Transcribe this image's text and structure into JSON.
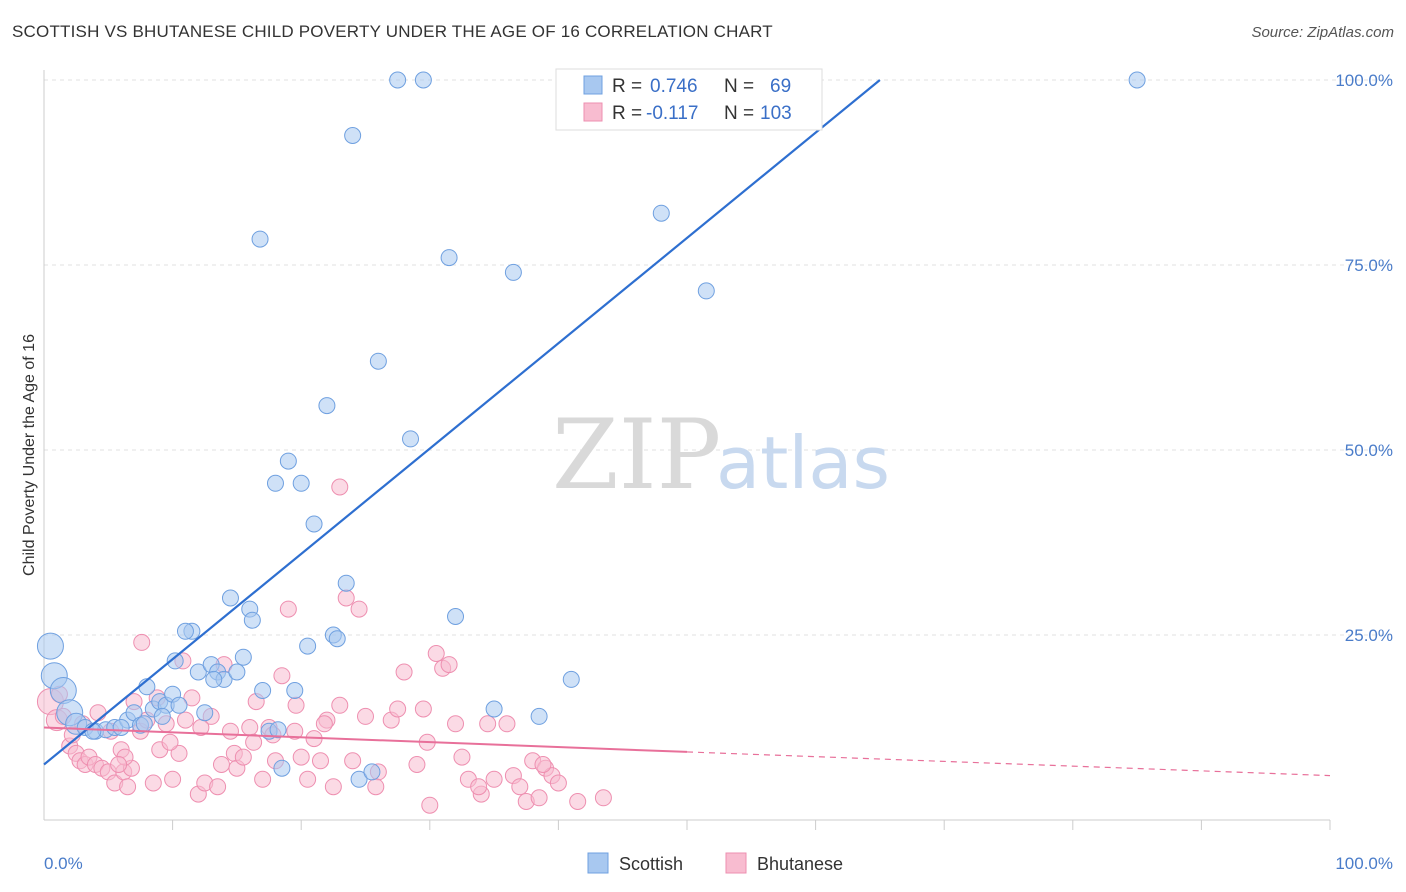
{
  "header": {
    "title": "SCOTTISH VS BHUTANESE CHILD POVERTY UNDER THE AGE OF 16 CORRELATION CHART",
    "source": "Source: ZipAtlas.com"
  },
  "watermark": {
    "zip": "ZIP",
    "atlas": "atlas"
  },
  "legend": {
    "rows": [
      {
        "r_label": "R =",
        "r_value": "0.746",
        "n_label": "N =",
        "n_value": "69",
        "color": "#a8c8f0"
      },
      {
        "r_label": "R =",
        "r_value": "-0.117",
        "n_label": "N =",
        "n_value": "103",
        "color": "#f8bcd0"
      }
    ]
  },
  "bottom_legend": {
    "scottish": "Scottish",
    "bhutanese": "Bhutanese"
  },
  "chart_data": {
    "type": "scatter",
    "title": "SCOTTISH VS BHUTANESE CHILD POVERTY UNDER THE AGE OF 16 CORRELATION CHART",
    "xlabel": "",
    "ylabel": "Child Poverty Under the Age of 16",
    "xlim": [
      0,
      100
    ],
    "ylim": [
      0,
      100
    ],
    "x_tick_labels": [
      "0.0%",
      "100.0%"
    ],
    "y_ticks": [
      25,
      50,
      75,
      100
    ],
    "y_tick_labels": [
      "25.0%",
      "50.0%",
      "75.0%",
      "100.0%"
    ],
    "grid": true,
    "legend_position": "top-center",
    "colors": {
      "scottish": "#6fa0e0",
      "scottish_fill": "#a8c8f0",
      "scottish_line": "#2e6fd0",
      "bhutanese": "#ee8fb0",
      "bhutanese_fill": "#f8bcd0",
      "bhutanese_line": "#e8709a"
    },
    "series": [
      {
        "name": "Scottish",
        "trendline": {
          "x": [
            0,
            65
          ],
          "y": [
            7.5,
            100
          ]
        },
        "points": [
          [
            0.5,
            23.5,
            2
          ],
          [
            0.8,
            19.5,
            2
          ],
          [
            1.5,
            17.5,
            2
          ],
          [
            2.0,
            14.5,
            2
          ],
          [
            2.5,
            13.0,
            1.5
          ],
          [
            3.2,
            12.5,
            1
          ],
          [
            4.0,
            12.0,
            1
          ],
          [
            4.8,
            12.2,
            1
          ],
          [
            5.5,
            12.5,
            1
          ],
          [
            6.5,
            13.5,
            1
          ],
          [
            7.0,
            14.5,
            1
          ],
          [
            7.5,
            12.8,
            1
          ],
          [
            8.0,
            18.0,
            1
          ],
          [
            8.5,
            15.0,
            1
          ],
          [
            9.0,
            16.0,
            1
          ],
          [
            9.5,
            15.5,
            1
          ],
          [
            10.0,
            17.0,
            1
          ],
          [
            10.5,
            15.5,
            1
          ],
          [
            10.2,
            21.5,
            1
          ],
          [
            11.5,
            25.5,
            1
          ],
          [
            12.0,
            20.0,
            1
          ],
          [
            12.5,
            14.5,
            1
          ],
          [
            13.0,
            21.0,
            1
          ],
          [
            13.5,
            20.0,
            1
          ],
          [
            14.0,
            19.0,
            1
          ],
          [
            14.5,
            30.0,
            1
          ],
          [
            15.0,
            20.0,
            1
          ],
          [
            15.5,
            22.0,
            1
          ],
          [
            16.0,
            28.5,
            1
          ],
          [
            16.2,
            27.0,
            1
          ],
          [
            17.0,
            17.5,
            1
          ],
          [
            17.5,
            12.0,
            1
          ],
          [
            18.0,
            45.5,
            1
          ],
          [
            18.5,
            7.0,
            1
          ],
          [
            19.0,
            48.5,
            1
          ],
          [
            19.5,
            17.5,
            1
          ],
          [
            20.0,
            45.5,
            1
          ],
          [
            20.5,
            23.5,
            1
          ],
          [
            21.0,
            40.0,
            1
          ],
          [
            22.0,
            56.0,
            1
          ],
          [
            22.5,
            25.0,
            1
          ],
          [
            22.8,
            24.5,
            1
          ],
          [
            23.5,
            32.0,
            1
          ],
          [
            24.0,
            92.5,
            1
          ],
          [
            24.5,
            5.5,
            1
          ],
          [
            25.5,
            6.5,
            1
          ],
          [
            26.0,
            62.0,
            1
          ],
          [
            27.5,
            100,
            1
          ],
          [
            28.5,
            51.5,
            1
          ],
          [
            29.5,
            100,
            1
          ],
          [
            31.5,
            76.0,
            1
          ],
          [
            32.0,
            27.5,
            1
          ],
          [
            16.8,
            78.5,
            1
          ],
          [
            35.0,
            15.0,
            1
          ],
          [
            36.5,
            74.0,
            1
          ],
          [
            38.5,
            14.0,
            1
          ],
          [
            41.0,
            19.0,
            1
          ],
          [
            43.0,
            100,
            1
          ],
          [
            47.0,
            100,
            1
          ],
          [
            48.0,
            82.0,
            1
          ],
          [
            51.5,
            71.5,
            1
          ],
          [
            85.0,
            100,
            1
          ],
          [
            3.8,
            12.0,
            1
          ],
          [
            6.0,
            12.5,
            1
          ],
          [
            11.0,
            25.5,
            1
          ],
          [
            13.2,
            19.0,
            1
          ],
          [
            9.2,
            14.0,
            1
          ],
          [
            18.2,
            12.2,
            1
          ],
          [
            7.8,
            13.0,
            1
          ]
        ]
      },
      {
        "name": "Bhutanese",
        "trendline": {
          "x": [
            0,
            50
          ],
          "y": [
            12.5,
            9.2
          ]
        },
        "trendline_extension": {
          "x": [
            50,
            100
          ],
          "y": [
            9.2,
            6.0
          ]
        },
        "points": [
          [
            0.5,
            16.0,
            2
          ],
          [
            1.0,
            13.5,
            1.5
          ],
          [
            1.5,
            14.0,
            1
          ],
          [
            2.0,
            10.0,
            1
          ],
          [
            2.5,
            9.0,
            1
          ],
          [
            2.8,
            8.0,
            1
          ],
          [
            3.2,
            7.5,
            1
          ],
          [
            3.5,
            8.5,
            1
          ],
          [
            4.0,
            7.5,
            1
          ],
          [
            4.5,
            7.0,
            1
          ],
          [
            5.0,
            6.5,
            1
          ],
          [
            5.2,
            12.0,
            1
          ],
          [
            5.5,
            5.0,
            1
          ],
          [
            6.0,
            9.5,
            1
          ],
          [
            6.2,
            6.5,
            1
          ],
          [
            6.5,
            4.5,
            1
          ],
          [
            6.8,
            7.0,
            1
          ],
          [
            7.0,
            16.0,
            1
          ],
          [
            7.5,
            12.0,
            1
          ],
          [
            8.0,
            13.5,
            1
          ],
          [
            8.5,
            5.0,
            1
          ],
          [
            7.6,
            24.0,
            1
          ],
          [
            9.0,
            9.5,
            1
          ],
          [
            9.5,
            13.0,
            1
          ],
          [
            10.0,
            5.5,
            1
          ],
          [
            10.5,
            9.0,
            1
          ],
          [
            11.0,
            13.5,
            1
          ],
          [
            11.5,
            16.5,
            1
          ],
          [
            10.8,
            21.5,
            1
          ],
          [
            12.0,
            3.5,
            1
          ],
          [
            12.5,
            5.0,
            1
          ],
          [
            13.0,
            14.0,
            1
          ],
          [
            13.5,
            4.5,
            1
          ],
          [
            14.0,
            21.0,
            1
          ],
          [
            14.5,
            12.0,
            1
          ],
          [
            14.8,
            9.0,
            1
          ],
          [
            15.0,
            7.0,
            1
          ],
          [
            15.5,
            8.5,
            1
          ],
          [
            16.0,
            12.5,
            1
          ],
          [
            16.5,
            16.0,
            1
          ],
          [
            17.0,
            5.5,
            1
          ],
          [
            17.5,
            12.5,
            1
          ],
          [
            18.0,
            8.0,
            1
          ],
          [
            18.5,
            19.5,
            1
          ],
          [
            19.0,
            28.5,
            1
          ],
          [
            19.5,
            12.0,
            1
          ],
          [
            20.0,
            8.5,
            1
          ],
          [
            20.5,
            5.5,
            1
          ],
          [
            21.0,
            11.0,
            1
          ],
          [
            21.5,
            8.0,
            1
          ],
          [
            22.0,
            13.5,
            1
          ],
          [
            22.5,
            4.5,
            1
          ],
          [
            23.0,
            15.5,
            1
          ],
          [
            23.5,
            30.0,
            1
          ],
          [
            24.0,
            8.0,
            1
          ],
          [
            24.5,
            28.5,
            1
          ],
          [
            25.0,
            14.0,
            1
          ],
          [
            26.0,
            6.5,
            1
          ],
          [
            27.0,
            13.5,
            1
          ],
          [
            27.5,
            15.0,
            1
          ],
          [
            28.0,
            20.0,
            1
          ],
          [
            29.0,
            7.5,
            1
          ],
          [
            29.5,
            15.0,
            1
          ],
          [
            30.0,
            2.0,
            1
          ],
          [
            30.5,
            22.5,
            1
          ],
          [
            31.0,
            20.5,
            1
          ],
          [
            31.5,
            21.0,
            1
          ],
          [
            32.0,
            13.0,
            1
          ],
          [
            32.5,
            8.5,
            1
          ],
          [
            33.0,
            5.5,
            1
          ],
          [
            34.0,
            3.5,
            1
          ],
          [
            34.5,
            13.0,
            1
          ],
          [
            35.0,
            5.5,
            1
          ],
          [
            36.0,
            13.0,
            1
          ],
          [
            36.5,
            6.0,
            1
          ],
          [
            37.0,
            4.5,
            1
          ],
          [
            37.5,
            2.5,
            1
          ],
          [
            38.0,
            8.0,
            1
          ],
          [
            38.5,
            3.0,
            1
          ],
          [
            39.0,
            7.0,
            1
          ],
          [
            39.5,
            6.0,
            1
          ],
          [
            40.0,
            5.0,
            1
          ],
          [
            41.5,
            2.5,
            1
          ],
          [
            43.5,
            3.0,
            1
          ],
          [
            23.0,
            45.0,
            1
          ],
          [
            19.6,
            15.5,
            1
          ],
          [
            16.3,
            10.5,
            1
          ],
          [
            12.2,
            12.5,
            1
          ],
          [
            8.8,
            16.5,
            1
          ],
          [
            6.3,
            8.5,
            1
          ],
          [
            4.2,
            14.5,
            1
          ],
          [
            2.2,
            11.5,
            1
          ],
          [
            1.2,
            17.0,
            1
          ],
          [
            3.0,
            13.0,
            1
          ],
          [
            5.8,
            7.5,
            1
          ],
          [
            9.8,
            10.5,
            1
          ],
          [
            13.8,
            7.5,
            1
          ],
          [
            17.8,
            11.5,
            1
          ],
          [
            21.8,
            13.0,
            1
          ],
          [
            25.8,
            4.5,
            1
          ],
          [
            29.8,
            10.5,
            1
          ],
          [
            33.8,
            4.5,
            1
          ],
          [
            38.8,
            7.5,
            1
          ]
        ]
      }
    ]
  }
}
